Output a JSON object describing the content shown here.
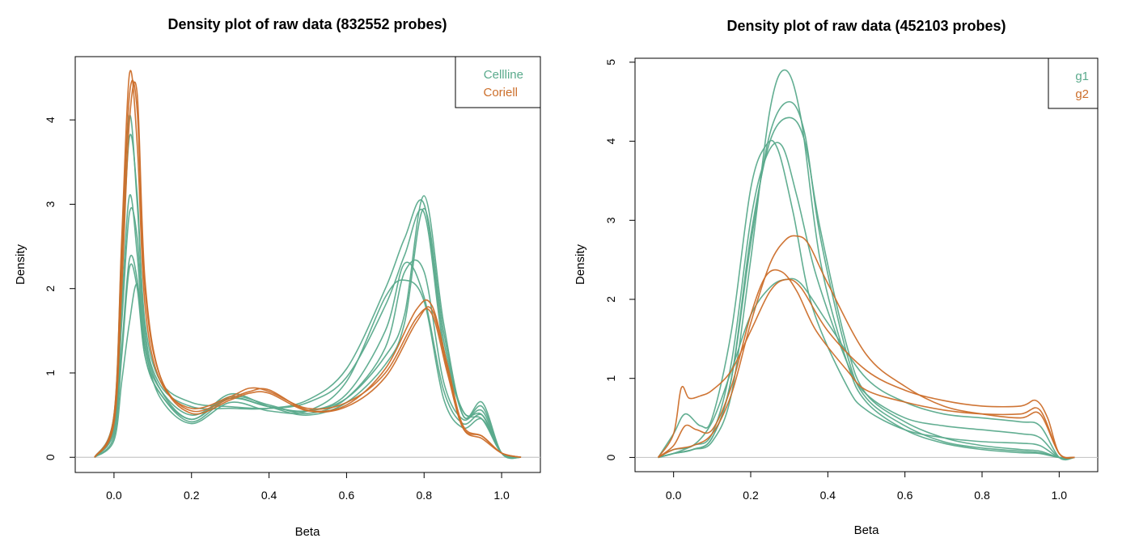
{
  "chart_data": [
    {
      "type": "line",
      "title": "Density plot of raw data (832552 probes)",
      "xlabel": "Beta",
      "ylabel": "Density",
      "xlim": [
        -0.1,
        1.1
      ],
      "ylim": [
        -0.18,
        4.75
      ],
      "xticks": [
        0.0,
        0.2,
        0.4,
        0.6,
        0.8,
        1.0
      ],
      "xtick_labels": [
        "0.0",
        "0.2",
        "0.4",
        "0.6",
        "0.8",
        "1.0"
      ],
      "yticks": [
        0,
        1,
        2,
        3,
        4
      ],
      "ytick_labels": [
        "0",
        "1",
        "2",
        "3",
        "4"
      ],
      "zero_line": true,
      "grid": false,
      "legend": {
        "position": "top-right",
        "entries": [
          {
            "label": "Cellline",
            "color": "#5aaa8c"
          },
          {
            "label": "Coriell",
            "color": "#cc6e2a"
          }
        ]
      },
      "series": [
        {
          "group": "Cellline",
          "color": "#5aaa8c",
          "x": [
            -0.05,
            0.0,
            0.02,
            0.04,
            0.06,
            0.08,
            0.12,
            0.2,
            0.3,
            0.4,
            0.5,
            0.6,
            0.7,
            0.75,
            0.8,
            0.85,
            0.9,
            0.95,
            1.0,
            1.05
          ],
          "y": [
            0.0,
            0.5,
            2.5,
            4.05,
            3.0,
            1.6,
            0.9,
            0.65,
            0.6,
            0.58,
            0.65,
            0.95,
            1.8,
            2.4,
            2.9,
            1.3,
            0.55,
            0.45,
            0.05,
            0.0
          ]
        },
        {
          "group": "Cellline",
          "color": "#5aaa8c",
          "x": [
            -0.05,
            0.0,
            0.02,
            0.04,
            0.06,
            0.08,
            0.12,
            0.2,
            0.3,
            0.4,
            0.5,
            0.6,
            0.7,
            0.75,
            0.8,
            0.85,
            0.9,
            0.95,
            1.0,
            1.05
          ],
          "y": [
            0.0,
            0.45,
            2.2,
            3.8,
            3.1,
            1.5,
            0.85,
            0.6,
            0.58,
            0.58,
            0.68,
            1.05,
            2.0,
            2.6,
            3.0,
            1.4,
            0.55,
            0.5,
            0.05,
            0.0
          ]
        },
        {
          "group": "Cellline",
          "color": "#5aaa8c",
          "x": [
            -0.05,
            0.0,
            0.02,
            0.04,
            0.06,
            0.08,
            0.12,
            0.2,
            0.3,
            0.4,
            0.5,
            0.6,
            0.7,
            0.75,
            0.8,
            0.85,
            0.9,
            0.95,
            1.0,
            1.05
          ],
          "y": [
            0.0,
            0.4,
            1.8,
            3.1,
            2.4,
            1.3,
            0.8,
            0.5,
            0.7,
            0.6,
            0.55,
            0.7,
            1.2,
            1.7,
            3.1,
            1.6,
            0.5,
            0.65,
            0.05,
            0.0
          ]
        },
        {
          "group": "Cellline",
          "color": "#5aaa8c",
          "x": [
            -0.05,
            0.0,
            0.02,
            0.04,
            0.06,
            0.08,
            0.12,
            0.2,
            0.3,
            0.4,
            0.5,
            0.6,
            0.7,
            0.75,
            0.8,
            0.85,
            0.9,
            0.95,
            1.0,
            1.05
          ],
          "y": [
            0.0,
            0.35,
            1.6,
            2.9,
            2.6,
            1.4,
            0.8,
            0.45,
            0.75,
            0.6,
            0.5,
            0.65,
            1.1,
            1.6,
            2.95,
            1.5,
            0.5,
            0.6,
            0.05,
            0.0
          ]
        },
        {
          "group": "Cellline",
          "color": "#5aaa8c",
          "x": [
            -0.05,
            0.0,
            0.02,
            0.04,
            0.06,
            0.08,
            0.12,
            0.2,
            0.3,
            0.4,
            0.5,
            0.6,
            0.7,
            0.75,
            0.8,
            0.85,
            0.9,
            0.95,
            1.0,
            1.05
          ],
          "y": [
            0.0,
            0.3,
            1.3,
            2.35,
            2.1,
            1.2,
            0.75,
            0.45,
            0.72,
            0.62,
            0.52,
            0.7,
            1.3,
            2.2,
            2.2,
            0.9,
            0.45,
            0.55,
            0.05,
            0.0
          ]
        },
        {
          "group": "Cellline",
          "color": "#5aaa8c",
          "x": [
            -0.05,
            0.0,
            0.02,
            0.04,
            0.06,
            0.08,
            0.12,
            0.2,
            0.3,
            0.4,
            0.5,
            0.6,
            0.7,
            0.75,
            0.8,
            0.85,
            0.9,
            0.95,
            1.0,
            1.05
          ],
          "y": [
            0.0,
            0.25,
            1.2,
            2.25,
            2.0,
            1.2,
            0.75,
            0.42,
            0.7,
            0.6,
            0.55,
            0.75,
            1.5,
            2.3,
            1.9,
            0.8,
            0.4,
            0.5,
            0.05,
            0.0
          ]
        },
        {
          "group": "Cellline",
          "color": "#5aaa8c",
          "x": [
            -0.05,
            0.0,
            0.02,
            0.04,
            0.06,
            0.08,
            0.12,
            0.2,
            0.3,
            0.4,
            0.5,
            0.6,
            0.7,
            0.75,
            0.8,
            0.85,
            0.9,
            0.95,
            1.0,
            1.05
          ],
          "y": [
            0.0,
            0.2,
            0.9,
            1.6,
            2.05,
            1.3,
            0.7,
            0.4,
            0.65,
            0.55,
            0.55,
            0.9,
            1.9,
            2.1,
            1.85,
            0.7,
            0.35,
            0.45,
            0.05,
            0.0
          ]
        },
        {
          "group": "Coriell",
          "color": "#cc6e2a",
          "x": [
            -0.05,
            0.0,
            0.02,
            0.04,
            0.06,
            0.08,
            0.12,
            0.2,
            0.3,
            0.35,
            0.4,
            0.5,
            0.6,
            0.7,
            0.78,
            0.82,
            0.86,
            0.9,
            0.95,
            1.0,
            1.05
          ],
          "y": [
            0.0,
            0.5,
            2.6,
            4.55,
            3.7,
            1.8,
            0.9,
            0.58,
            0.72,
            0.82,
            0.78,
            0.58,
            0.65,
            1.0,
            1.65,
            1.7,
            1.0,
            0.35,
            0.25,
            0.05,
            0.0
          ]
        },
        {
          "group": "Coriell",
          "color": "#cc6e2a",
          "x": [
            -0.05,
            0.0,
            0.02,
            0.04,
            0.06,
            0.08,
            0.12,
            0.2,
            0.3,
            0.35,
            0.4,
            0.5,
            0.6,
            0.7,
            0.78,
            0.82,
            0.86,
            0.9,
            0.95,
            1.0,
            1.05
          ],
          "y": [
            0.0,
            0.45,
            2.3,
            4.3,
            4.1,
            2.0,
            0.95,
            0.55,
            0.7,
            0.78,
            0.8,
            0.56,
            0.62,
            1.05,
            1.75,
            1.8,
            1.1,
            0.38,
            0.25,
            0.05,
            0.0
          ]
        },
        {
          "group": "Coriell",
          "color": "#cc6e2a",
          "x": [
            -0.05,
            0.0,
            0.02,
            0.04,
            0.06,
            0.08,
            0.12,
            0.2,
            0.3,
            0.35,
            0.4,
            0.5,
            0.6,
            0.7,
            0.78,
            0.82,
            0.86,
            0.9,
            0.95,
            1.0,
            1.05
          ],
          "y": [
            0.0,
            0.4,
            2.0,
            4.0,
            4.3,
            2.1,
            0.95,
            0.52,
            0.68,
            0.76,
            0.76,
            0.55,
            0.6,
            0.95,
            1.6,
            1.75,
            1.05,
            0.35,
            0.22,
            0.05,
            0.0
          ]
        }
      ]
    },
    {
      "type": "line",
      "title": "Density plot of raw data (452103 probes)",
      "xlabel": "Beta",
      "ylabel": "Density",
      "xlim": [
        -0.1,
        1.1
      ],
      "ylim": [
        -0.18,
        5.05
      ],
      "xticks": [
        0.0,
        0.2,
        0.4,
        0.6,
        0.8,
        1.0
      ],
      "xtick_labels": [
        "0.0",
        "0.2",
        "0.4",
        "0.6",
        "0.8",
        "1.0"
      ],
      "yticks": [
        0,
        1,
        2,
        3,
        4,
        5
      ],
      "ytick_labels": [
        "0",
        "1",
        "2",
        "3",
        "4",
        "5"
      ],
      "zero_line": true,
      "grid": false,
      "legend": {
        "position": "top-right",
        "entries": [
          {
            "label": "g1",
            "color": "#5aaa8c"
          },
          {
            "label": "g2",
            "color": "#cc6e2a"
          }
        ]
      },
      "series": [
        {
          "group": "g1",
          "color": "#5aaa8c",
          "x": [
            -0.04,
            0.0,
            0.05,
            0.1,
            0.15,
            0.2,
            0.25,
            0.29,
            0.33,
            0.38,
            0.45,
            0.5,
            0.6,
            0.7,
            0.8,
            0.9,
            0.95,
            1.0,
            1.04
          ],
          "y": [
            0.0,
            0.05,
            0.1,
            0.2,
            0.8,
            2.5,
            4.4,
            4.9,
            4.3,
            2.5,
            1.2,
            0.7,
            0.35,
            0.18,
            0.1,
            0.06,
            0.05,
            0.0,
            0.0
          ]
        },
        {
          "group": "g1",
          "color": "#5aaa8c",
          "x": [
            -0.04,
            0.0,
            0.05,
            0.1,
            0.15,
            0.2,
            0.25,
            0.3,
            0.34,
            0.38,
            0.45,
            0.5,
            0.6,
            0.7,
            0.8,
            0.9,
            0.95,
            1.0,
            1.04
          ],
          "y": [
            0.0,
            0.05,
            0.1,
            0.25,
            1.0,
            2.7,
            4.1,
            4.5,
            4.1,
            2.8,
            1.3,
            0.75,
            0.4,
            0.2,
            0.12,
            0.08,
            0.06,
            0.0,
            0.0
          ]
        },
        {
          "group": "g1",
          "color": "#5aaa8c",
          "x": [
            -0.04,
            0.0,
            0.05,
            0.1,
            0.15,
            0.2,
            0.25,
            0.3,
            0.34,
            0.38,
            0.45,
            0.5,
            0.6,
            0.7,
            0.8,
            0.9,
            0.95,
            1.0,
            1.04
          ],
          "y": [
            0.0,
            0.05,
            0.1,
            0.25,
            1.0,
            2.8,
            4.0,
            4.3,
            4.0,
            2.9,
            1.4,
            0.8,
            0.45,
            0.25,
            0.15,
            0.1,
            0.08,
            0.0,
            0.0
          ]
        },
        {
          "group": "g1",
          "color": "#5aaa8c",
          "x": [
            -0.04,
            0.0,
            0.03,
            0.07,
            0.1,
            0.15,
            0.2,
            0.24,
            0.27,
            0.31,
            0.36,
            0.45,
            0.5,
            0.6,
            0.7,
            0.8,
            0.9,
            0.95,
            1.0,
            1.04
          ],
          "y": [
            0.0,
            0.3,
            0.55,
            0.4,
            0.5,
            1.6,
            3.4,
            3.95,
            3.9,
            3.1,
            1.9,
            0.9,
            0.6,
            0.35,
            0.25,
            0.2,
            0.18,
            0.15,
            0.0,
            0.0
          ]
        },
        {
          "group": "g1",
          "color": "#5aaa8c",
          "x": [
            -0.04,
            0.0,
            0.05,
            0.1,
            0.15,
            0.2,
            0.24,
            0.28,
            0.32,
            0.37,
            0.45,
            0.5,
            0.6,
            0.7,
            0.8,
            0.9,
            0.95,
            1.0,
            1.04
          ],
          "y": [
            0.0,
            0.05,
            0.15,
            0.3,
            1.2,
            3.0,
            3.8,
            3.95,
            3.3,
            2.3,
            1.2,
            0.8,
            0.5,
            0.4,
            0.35,
            0.3,
            0.25,
            0.0,
            0.0
          ]
        },
        {
          "group": "g1",
          "color": "#5aaa8c",
          "x": [
            -0.04,
            0.0,
            0.05,
            0.1,
            0.15,
            0.2,
            0.25,
            0.29,
            0.33,
            0.4,
            0.5,
            0.6,
            0.7,
            0.8,
            0.9,
            0.95,
            1.0,
            1.04
          ],
          "y": [
            0.0,
            0.1,
            0.15,
            0.45,
            1.1,
            1.8,
            2.15,
            2.25,
            2.2,
            1.7,
            1.0,
            0.7,
            0.55,
            0.5,
            0.45,
            0.4,
            0.0,
            0.0
          ]
        },
        {
          "group": "g2",
          "color": "#cc6e2a",
          "x": [
            -0.04,
            0.0,
            0.02,
            0.04,
            0.07,
            0.1,
            0.15,
            0.2,
            0.25,
            0.29,
            0.33,
            0.4,
            0.5,
            0.6,
            0.7,
            0.8,
            0.9,
            0.94,
            0.97,
            1.0,
            1.04
          ],
          "y": [
            0.0,
            0.3,
            0.88,
            0.75,
            0.78,
            0.85,
            1.1,
            1.6,
            2.1,
            2.25,
            2.15,
            1.6,
            1.1,
            0.85,
            0.72,
            0.65,
            0.65,
            0.72,
            0.5,
            0.05,
            0.0
          ]
        },
        {
          "group": "g2",
          "color": "#cc6e2a",
          "x": [
            -0.04,
            0.0,
            0.03,
            0.06,
            0.1,
            0.15,
            0.2,
            0.24,
            0.28,
            0.32,
            0.37,
            0.45,
            0.5,
            0.6,
            0.7,
            0.8,
            0.9,
            0.95,
            1.0,
            1.04
          ],
          "y": [
            0.0,
            0.15,
            0.4,
            0.35,
            0.35,
            0.9,
            1.8,
            2.3,
            2.35,
            2.1,
            1.6,
            1.1,
            0.85,
            0.7,
            0.6,
            0.55,
            0.55,
            0.6,
            0.05,
            0.0
          ]
        },
        {
          "group": "g2",
          "color": "#cc6e2a",
          "x": [
            -0.04,
            0.0,
            0.05,
            0.1,
            0.15,
            0.2,
            0.25,
            0.29,
            0.32,
            0.35,
            0.4,
            0.5,
            0.6,
            0.7,
            0.8,
            0.9,
            0.95,
            1.0,
            1.04
          ],
          "y": [
            0.0,
            0.1,
            0.15,
            0.3,
            0.8,
            1.7,
            2.45,
            2.75,
            2.8,
            2.7,
            2.2,
            1.3,
            0.9,
            0.65,
            0.55,
            0.5,
            0.55,
            0.05,
            0.0
          ]
        }
      ]
    }
  ]
}
